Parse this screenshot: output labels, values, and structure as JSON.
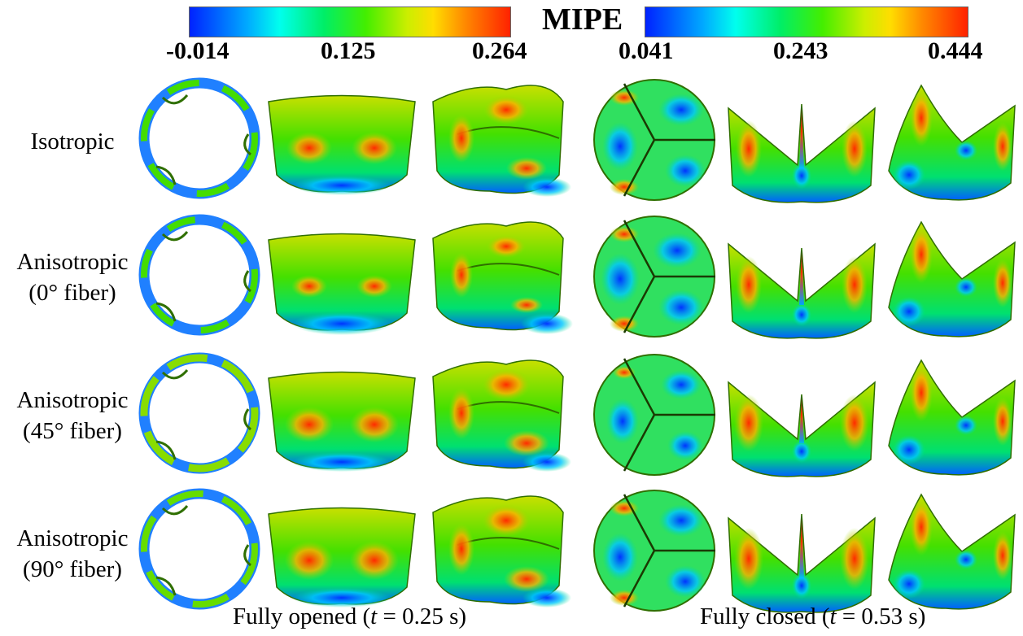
{
  "colorbar": {
    "title": "MIPE",
    "left_ticks": [
      "-0.014",
      "0.125",
      "0.264"
    ],
    "right_ticks": [
      "0.041",
      "0.243",
      "0.444"
    ],
    "colors": [
      "#0022ff",
      "#00aaff",
      "#00ffee",
      "#00ee66",
      "#44ee00",
      "#ccee00",
      "#ffdd00",
      "#ff8800",
      "#ff2200"
    ]
  },
  "rows": [
    {
      "line1": "Isotropic",
      "line2": ""
    },
    {
      "line1": "Anisotropic",
      "line2": "(0° fiber)"
    },
    {
      "line1": "Anisotropic",
      "line2": "(45° fiber)"
    },
    {
      "line1": "Anisotropic",
      "line2": "(90° fiber)"
    }
  ],
  "captions": {
    "opened_prefix": "Fully opened (",
    "opened_var": "t",
    "opened_suffix": " = 0.25 s)",
    "closed_prefix": "Fully closed (",
    "closed_var": "t",
    "closed_suffix": " = 0.53 s)"
  }
}
